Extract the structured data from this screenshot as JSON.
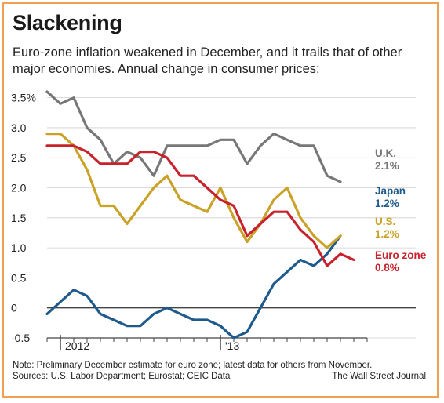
{
  "title": "Slackening",
  "subtitle": "Euro-zone inflation weakened in December, and it trails that of other major economies. Annual change in consumer prices:",
  "note": "Note: Preliminary December estimate for euro zone; latest data for others from November.",
  "sources": "Sources: U.S. Labor Department; Eurostat; CEIC Data",
  "credit": "The Wall Street Journal",
  "chart_data": {
    "type": "line",
    "ylim": [
      -0.5,
      3.6
    ],
    "yticks": [
      -0.5,
      0,
      0.5,
      1.0,
      1.5,
      2.0,
      2.5,
      3.0,
      3.5
    ],
    "ytick_labels": [
      "-0.5",
      "0",
      "0.5",
      "1.0",
      "1.5",
      "2.0",
      "2.5",
      "3.0",
      "3.5%"
    ],
    "x": [
      "2011-12",
      "2012-01",
      "2012-02",
      "2012-03",
      "2012-04",
      "2012-05",
      "2012-06",
      "2012-07",
      "2012-08",
      "2012-09",
      "2012-10",
      "2012-11",
      "2012-12",
      "2013-01",
      "2013-02",
      "2013-03",
      "2013-04",
      "2013-05",
      "2013-06",
      "2013-07",
      "2013-08",
      "2013-09",
      "2013-10",
      "2013-11",
      "2013-12"
    ],
    "xtick_labels": [
      {
        "label": "2012",
        "at": "2012-01"
      },
      {
        "label": "'13",
        "at": "2013-01"
      }
    ],
    "grid": true,
    "series": [
      {
        "name": "U.K.",
        "end_label": "2.1%",
        "color": "#777777",
        "values": [
          3.6,
          3.4,
          3.5,
          3.0,
          2.8,
          2.4,
          2.6,
          2.5,
          2.2,
          2.7,
          2.7,
          2.7,
          2.7,
          2.8,
          2.8,
          2.4,
          2.7,
          2.9,
          2.8,
          2.7,
          2.7,
          2.2,
          2.1,
          null,
          null
        ]
      },
      {
        "name": "Japan",
        "end_label": "1.2%",
        "color": "#1f5a8c",
        "values": [
          -0.1,
          0.1,
          0.3,
          0.2,
          -0.1,
          -0.2,
          -0.3,
          -0.3,
          -0.1,
          0.0,
          -0.1,
          -0.2,
          -0.2,
          -0.3,
          -0.5,
          -0.4,
          0.0,
          0.4,
          0.6,
          0.8,
          0.7,
          0.9,
          1.2,
          null,
          null
        ]
      },
      {
        "name": "U.S.",
        "end_label": "1.2%",
        "color": "#c9a227",
        "values": [
          2.9,
          2.9,
          2.7,
          2.3,
          1.7,
          1.7,
          1.4,
          1.7,
          2.0,
          2.2,
          1.8,
          1.7,
          1.6,
          2.0,
          1.5,
          1.1,
          1.4,
          1.8,
          2.0,
          1.5,
          1.2,
          1.0,
          1.2,
          null,
          null
        ]
      },
      {
        "name": "Euro zone",
        "end_label": "0.8%",
        "color": "#c8232c",
        "values": [
          2.7,
          2.7,
          2.7,
          2.6,
          2.4,
          2.4,
          2.4,
          2.6,
          2.6,
          2.5,
          2.2,
          2.2,
          2.0,
          1.8,
          1.7,
          1.2,
          1.4,
          1.6,
          1.6,
          1.3,
          1.1,
          0.7,
          0.9,
          0.8,
          null
        ]
      }
    ]
  }
}
